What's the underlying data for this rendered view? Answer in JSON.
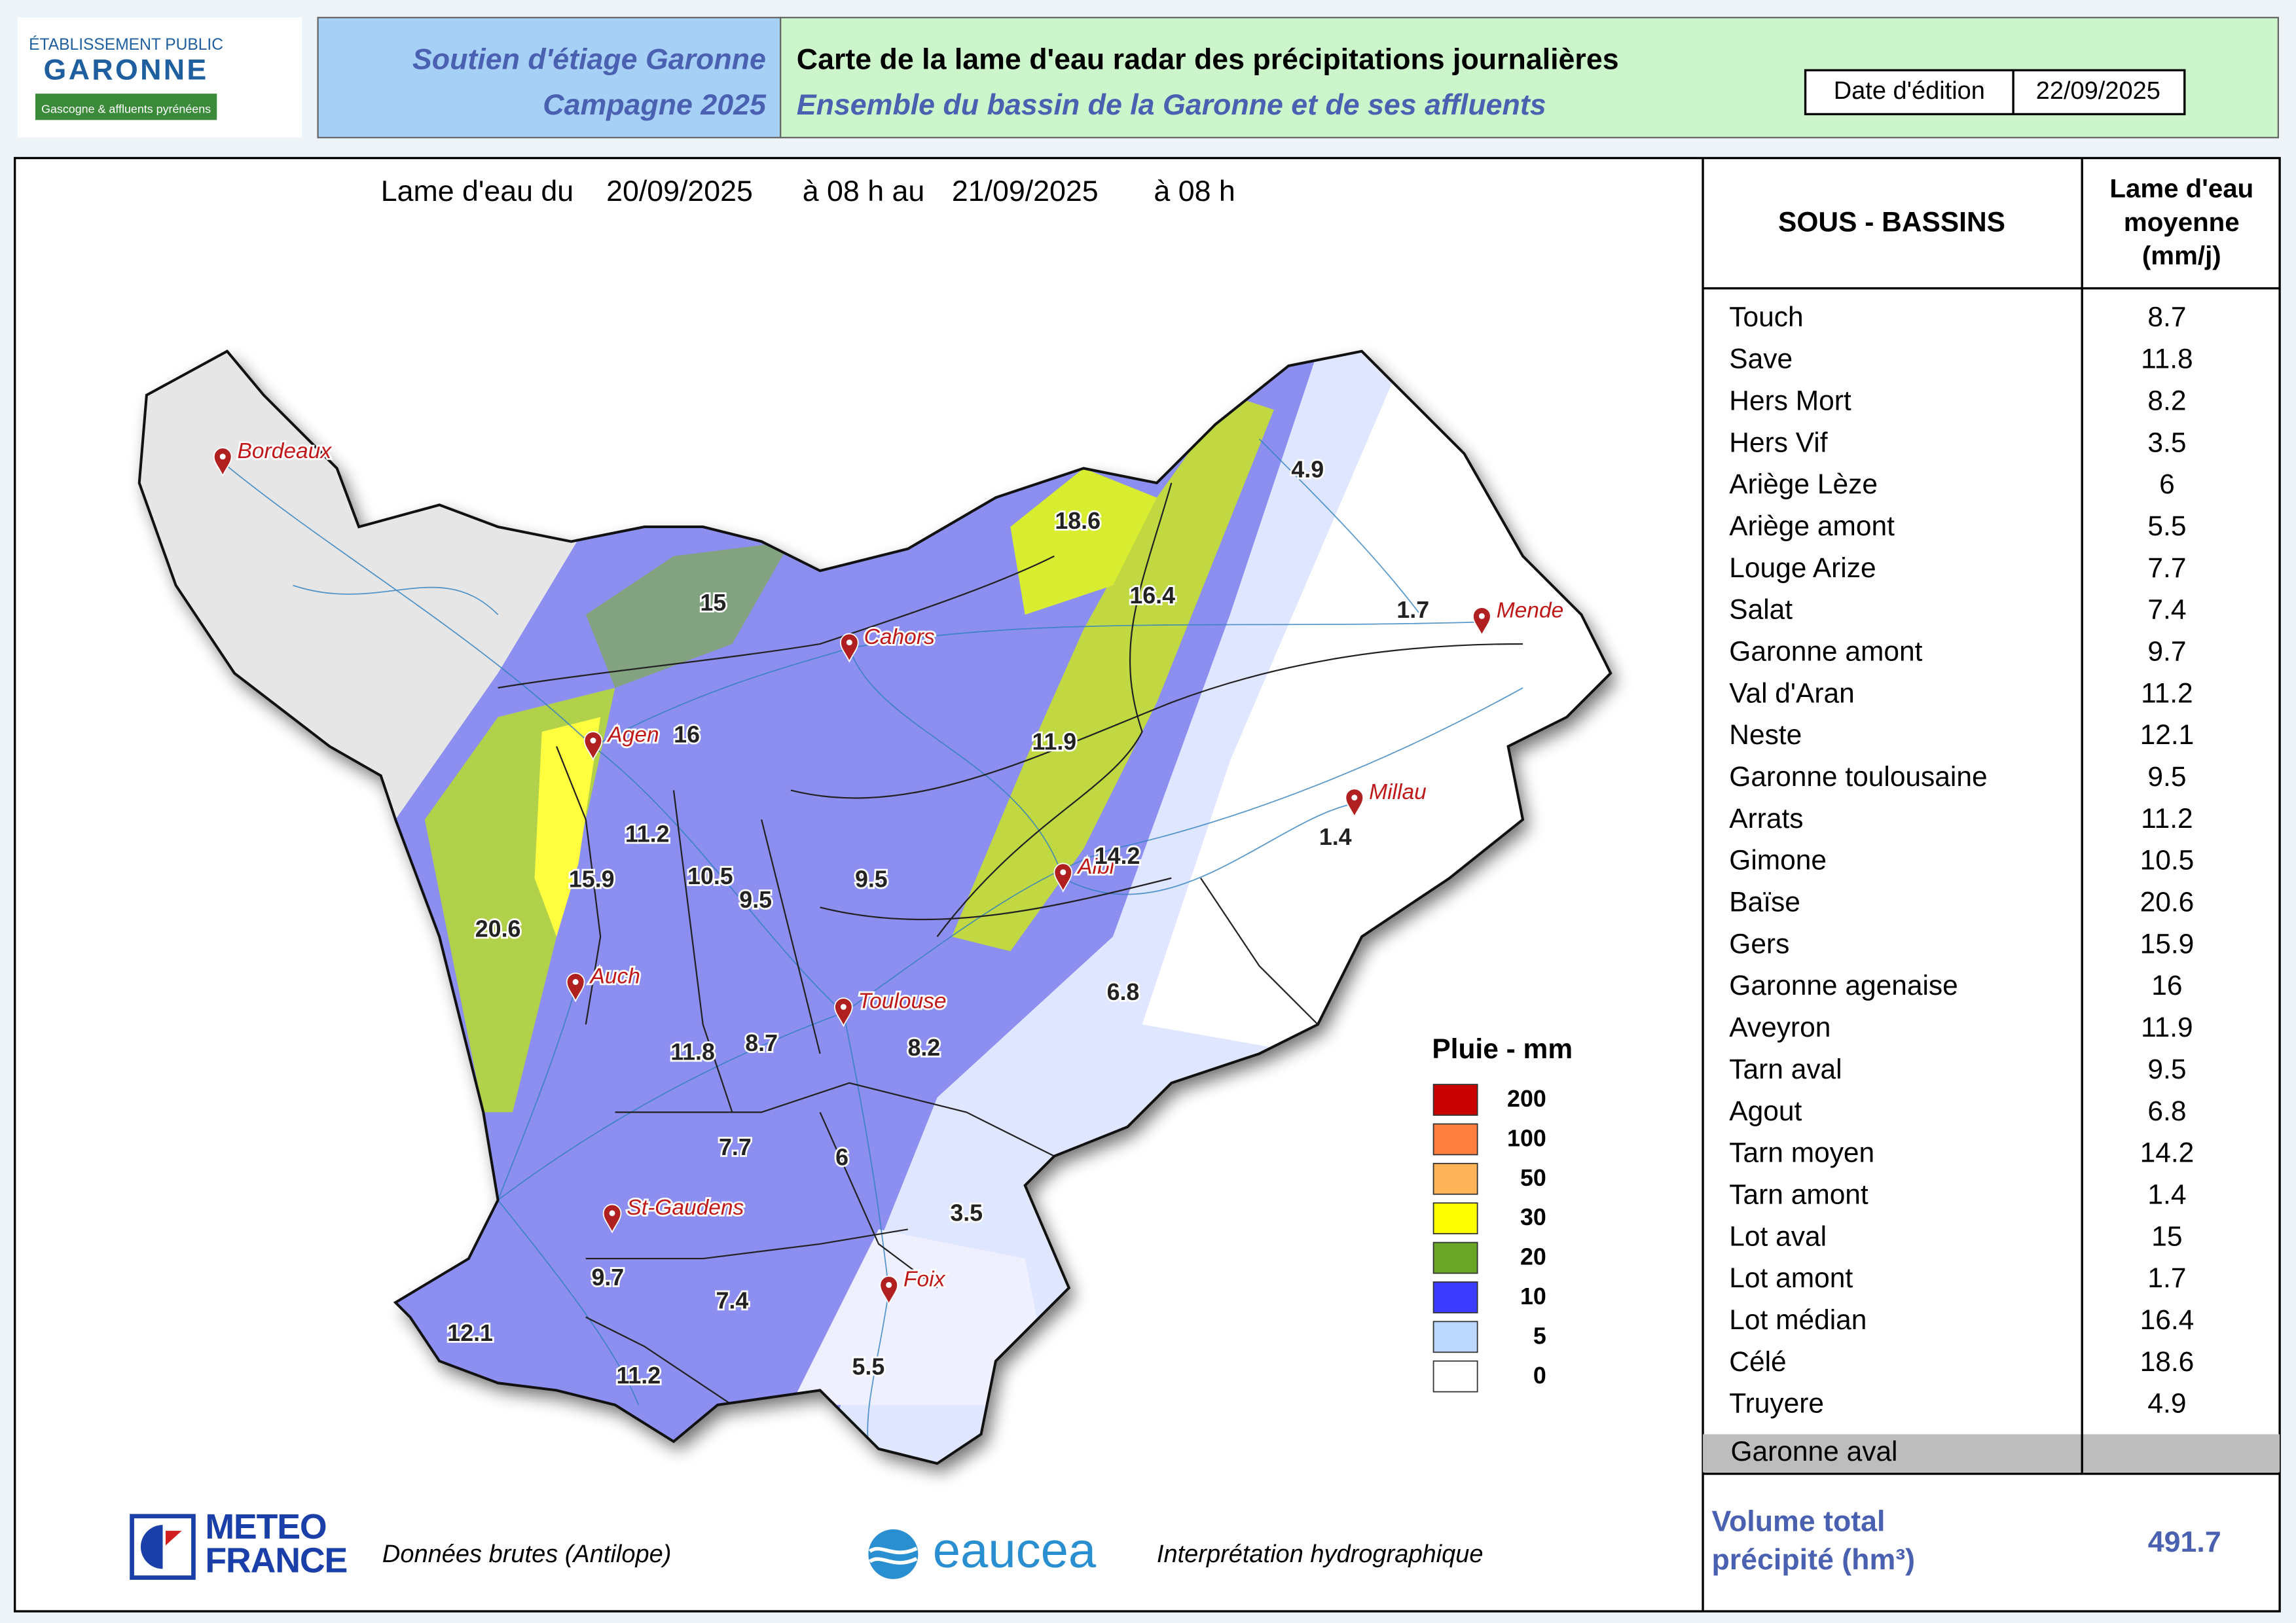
{
  "header": {
    "logo_top": "ÉTABLISSEMENT PUBLIC",
    "logo_name": "GARONNE",
    "logo_sub": "Gascogne & affluents pyrénéens",
    "program": "Soutien d'étiage Garonne",
    "campaign": "Campagne 2025",
    "title": "Carte de la lame d'eau radar des précipitations journalières",
    "subtitle": "Ensemble du bassin de la Garonne et de ses affluents",
    "date_label": "Date d'édition",
    "date": "22/09/2025"
  },
  "map": {
    "period": {
      "prefix": "Lame d'eau du",
      "start_date": "20/09/2025",
      "start_time": "à 08 h au",
      "end_date": "21/09/2025",
      "end_time": "à 08 h"
    },
    "cities": [
      "Bordeaux",
      "Cahors",
      "Agen",
      "Auch",
      "Toulouse",
      "St-Gaudens",
      "Foix",
      "Albi",
      "Millau",
      "Mende"
    ],
    "basin_values": [
      4.9,
      18.6,
      16.4,
      15,
      1.7,
      16,
      11.9,
      11.2,
      15.9,
      10.5,
      9.5,
      9.5,
      14.2,
      1.4,
      20.6,
      6.8,
      11.8,
      8.7,
      8.2,
      7.7,
      6,
      3.5,
      9.7,
      7.4,
      12.1,
      11.2,
      5.5
    ],
    "legend": {
      "title": "Pluie - mm",
      "classes": [
        {
          "value": 200,
          "color": "#c80000"
        },
        {
          "value": 100,
          "color": "#ff7f3f"
        },
        {
          "value": 50,
          "color": "#ffb45a"
        },
        {
          "value": 30,
          "color": "#ffff00"
        },
        {
          "value": 20,
          "color": "#6aa626"
        },
        {
          "value": 10,
          "color": "#3c3cff"
        },
        {
          "value": 5,
          "color": "#bcd8ff"
        },
        {
          "value": 0,
          "color": "#ffffff"
        }
      ]
    }
  },
  "table": {
    "header_name": "SOUS - BASSINS",
    "header_value": [
      "Lame d'eau",
      "moyenne",
      "(mm/j)"
    ],
    "rows": [
      [
        "Touch",
        8.7
      ],
      [
        "Save",
        11.8
      ],
      [
        "Hers Mort",
        8.2
      ],
      [
        "Hers Vif",
        3.5
      ],
      [
        "Ariège Lèze",
        6
      ],
      [
        "Ariège amont",
        5.5
      ],
      [
        "Louge Arize",
        7.7
      ],
      [
        "Salat",
        7.4
      ],
      [
        "Garonne amont",
        9.7
      ],
      [
        "Val d'Aran",
        11.2
      ],
      [
        "Neste",
        12.1
      ],
      [
        "Garonne toulousaine",
        9.5
      ],
      [
        "Arrats",
        11.2
      ],
      [
        "Gimone",
        10.5
      ],
      [
        "Baïse",
        20.6
      ],
      [
        "Gers",
        15.9
      ],
      [
        "Garonne agenaise",
        16
      ],
      [
        "Aveyron",
        11.9
      ],
      [
        "Tarn aval",
        9.5
      ],
      [
        "Agout",
        6.8
      ],
      [
        "Tarn moyen",
        14.2
      ],
      [
        "Tarn amont",
        1.4
      ],
      [
        "Lot aval",
        15
      ],
      [
        "Lot amont",
        1.7
      ],
      [
        "Lot médian",
        16.4
      ],
      [
        "Célé",
        18.6
      ],
      [
        "Truyere",
        4.9
      ]
    ],
    "footer_row": "Garonne aval",
    "total_label": [
      "Volume total",
      "précipité (hm³)"
    ],
    "total": 491.7
  },
  "footer": {
    "meteo_logo": [
      "METEO",
      "FRANCE"
    ],
    "meteo_caption": "Données brutes (Antilope)",
    "eaucea_logo": "eaucea",
    "eaucea_caption": "Interprétation hydrographique"
  }
}
